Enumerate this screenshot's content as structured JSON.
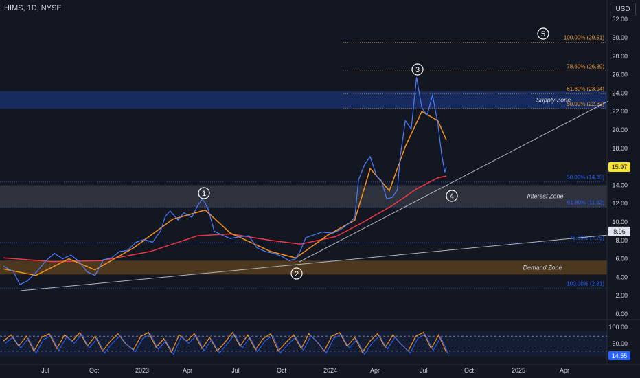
{
  "header": {
    "title": "HIMS, 1D, NYSE",
    "currency": "USD"
  },
  "chart_data": {
    "type": "line",
    "price_axis": [
      "32.00",
      "30.00",
      "28.00",
      "26.00",
      "24.00",
      "22.00",
      "20.00",
      "18.00",
      "16.00",
      "14.00",
      "12.00",
      "10.00",
      "8.00",
      "6.00",
      "4.00",
      "2.00",
      "0.00"
    ],
    "time_axis": [
      "Jul",
      "Oct",
      "2023",
      "Apr",
      "Jul",
      "Oct",
      "2024",
      "Apr",
      "Jul",
      "Oct",
      "2025",
      "Apr"
    ],
    "last_price": "15.97",
    "marked_price": "8.96",
    "fib_levels": [
      {
        "label": "100.00% (29.51)",
        "value": 29.51,
        "color": "#f0a040"
      },
      {
        "label": "78.60% (26.39)",
        "value": 26.39,
        "color": "#f0a040"
      },
      {
        "label": "61.80% (23.94)",
        "value": 23.94,
        "color": "#f0a040"
      },
      {
        "label": "50.00% (22.32)",
        "value": 22.32,
        "color": "#f0a040"
      },
      {
        "label": "50.00% (14.35)",
        "value": 14.35,
        "color": "#2962ff"
      },
      {
        "label": "61.80% (11.62)",
        "value": 11.62,
        "color": "#2962ff"
      },
      {
        "label": "78.60% (7.75)",
        "value": 7.75,
        "color": "#2962ff"
      },
      {
        "label": "100.00% (2.81)",
        "value": 2.81,
        "color": "#2962ff"
      }
    ],
    "zones": [
      {
        "label": "Supply Zone",
        "low": 22.3,
        "high": 24.2,
        "color": "#2962ff"
      },
      {
        "label": "Interest Zone",
        "low": 11.6,
        "high": 14.0,
        "color": "#787b86"
      },
      {
        "label": "Demand Zone",
        "low": 4.3,
        "high": 5.8,
        "color": "#b8741a"
      }
    ],
    "wave_labels": [
      "1",
      "2",
      "3",
      "4",
      "5"
    ],
    "price_series": [
      [
        "2022-05-01",
        5.2
      ],
      [
        "2022-05-20",
        4.6
      ],
      [
        "2022-06-01",
        3.2
      ],
      [
        "2022-06-15",
        3.6
      ],
      [
        "2022-07-01",
        4.5
      ],
      [
        "2022-07-20",
        5.8
      ],
      [
        "2022-08-05",
        6.6
      ],
      [
        "2022-08-20",
        6.0
      ],
      [
        "2022-09-05",
        6.4
      ],
      [
        "2022-09-20",
        5.7
      ],
      [
        "2022-10-05",
        4.6
      ],
      [
        "2022-10-20",
        4.2
      ],
      [
        "2022-11-05",
        5.9
      ],
      [
        "2022-11-20",
        6.1
      ],
      [
        "2022-12-05",
        6.8
      ],
      [
        "2022-12-20",
        6.9
      ],
      [
        "2023-01-05",
        7.8
      ],
      [
        "2023-01-20",
        8.1
      ],
      [
        "2023-02-05",
        7.8
      ],
      [
        "2023-02-20",
        9.0
      ],
      [
        "2023-03-01",
        10.6
      ],
      [
        "2023-03-10",
        11.2
      ],
      [
        "2023-03-25",
        10.2
      ],
      [
        "2023-04-05",
        11.0
      ],
      [
        "2023-04-20",
        10.5
      ],
      [
        "2023-05-01",
        11.8
      ],
      [
        "2023-05-10",
        12.5
      ],
      [
        "2023-05-20",
        11.5
      ],
      [
        "2023-06-01",
        9.0
      ],
      [
        "2023-06-15",
        8.6
      ],
      [
        "2023-07-01",
        8.2
      ],
      [
        "2023-07-20",
        8.4
      ],
      [
        "2023-08-05",
        8.5
      ],
      [
        "2023-08-20",
        7.2
      ],
      [
        "2023-09-05",
        6.8
      ],
      [
        "2023-09-20",
        6.6
      ],
      [
        "2023-10-05",
        6.3
      ],
      [
        "2023-10-20",
        5.8
      ],
      [
        "2023-11-01",
        6.0
      ],
      [
        "2023-11-10",
        6.9
      ],
      [
        "2023-11-20",
        8.3
      ],
      [
        "2023-12-05",
        8.6
      ],
      [
        "2023-12-20",
        8.9
      ],
      [
        "2024-01-10",
        8.8
      ],
      [
        "2024-01-25",
        9.2
      ],
      [
        "2024-02-10",
        9.9
      ],
      [
        "2024-02-20",
        10.5
      ],
      [
        "2024-02-27",
        14.6
      ],
      [
        "2024-03-10",
        16.3
      ],
      [
        "2024-03-20",
        17.1
      ],
      [
        "2024-04-01",
        15.0
      ],
      [
        "2024-04-10",
        14.5
      ],
      [
        "2024-04-20",
        12.5
      ],
      [
        "2024-05-01",
        12.7
      ],
      [
        "2024-05-10",
        13.5
      ],
      [
        "2024-05-15",
        17.0
      ],
      [
        "2024-05-25",
        21.0
      ],
      [
        "2024-06-05",
        20.1
      ],
      [
        "2024-06-15",
        25.7
      ],
      [
        "2024-06-25",
        22.4
      ],
      [
        "2024-07-05",
        21.6
      ],
      [
        "2024-07-15",
        23.8
      ],
      [
        "2024-07-25",
        20.7
      ],
      [
        "2024-08-01",
        17.4
      ],
      [
        "2024-08-07",
        15.4
      ],
      [
        "2024-08-10",
        15.97
      ]
    ],
    "ma_orange": [
      [
        "2022-05-01",
        4.9
      ],
      [
        "2022-07-01",
        4.2
      ],
      [
        "2022-09-01",
        6.0
      ],
      [
        "2022-10-20",
        4.8
      ],
      [
        "2023-01-01",
        7.2
      ],
      [
        "2023-03-15",
        10.3
      ],
      [
        "2023-05-15",
        11.3
      ],
      [
        "2023-07-01",
        8.8
      ],
      [
        "2023-09-15",
        6.8
      ],
      [
        "2023-11-01",
        6.1
      ],
      [
        "2024-01-01",
        8.6
      ],
      [
        "2024-02-20",
        10.2
      ],
      [
        "2024-03-20",
        15.8
      ],
      [
        "2024-04-25",
        13.4
      ],
      [
        "2024-05-25",
        18.2
      ],
      [
        "2024-06-25",
        22.0
      ],
      [
        "2024-07-25",
        21.0
      ],
      [
        "2024-08-10",
        18.9
      ]
    ],
    "ma_red": [
      [
        "2022-05-01",
        6.1
      ],
      [
        "2022-08-01",
        5.7
      ],
      [
        "2022-11-01",
        5.8
      ],
      [
        "2023-02-01",
        6.8
      ],
      [
        "2023-05-01",
        8.5
      ],
      [
        "2023-07-01",
        8.7
      ],
      [
        "2023-09-15",
        8.0
      ],
      [
        "2023-11-10",
        7.6
      ],
      [
        "2024-01-15",
        8.4
      ],
      [
        "2024-03-01",
        9.8
      ],
      [
        "2024-05-01",
        11.8
      ],
      [
        "2024-06-15",
        13.6
      ],
      [
        "2024-07-25",
        14.8
      ],
      [
        "2024-08-10",
        15.0
      ]
    ],
    "stoch_axis": [
      "100.00",
      "50.00"
    ],
    "stoch_value": "14.55",
    "stoch_k": [
      60,
      85,
      40,
      80,
      20,
      75,
      90,
      30,
      85,
      60,
      95,
      40,
      80,
      20,
      60,
      90,
      50,
      25,
      80,
      95,
      35,
      70,
      15,
      85,
      60,
      90,
      30,
      75,
      20,
      55,
      95,
      40,
      85,
      25,
      70,
      90,
      20,
      55,
      85,
      30,
      90,
      60,
      20,
      80,
      95,
      40,
      75,
      15,
      60,
      90,
      35,
      85,
      50,
      20,
      80,
      95,
      30,
      85,
      15
    ]
  }
}
